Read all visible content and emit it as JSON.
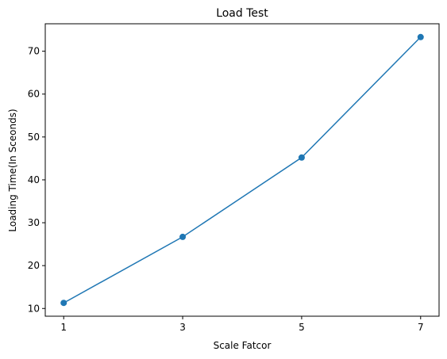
{
  "chart_data": {
    "type": "line",
    "title": "Load Test",
    "xlabel": "Scale Fatcor",
    "ylabel": "Loading Time(In Sceonds)",
    "x": [
      1,
      3,
      5,
      7
    ],
    "series": [
      {
        "values": [
          11.3,
          26.7,
          45.2,
          73.3
        ]
      }
    ],
    "xticks": [
      "1",
      "3",
      "5",
      "7"
    ],
    "yticks": [
      "10",
      "20",
      "30",
      "40",
      "50",
      "60",
      "70"
    ],
    "xlim": [
      0.69,
      7.31
    ],
    "ylim": [
      8.2,
      76.4
    ],
    "grid": false,
    "colors": {
      "series": "#1f77b4",
      "axis": "#000000"
    }
  }
}
